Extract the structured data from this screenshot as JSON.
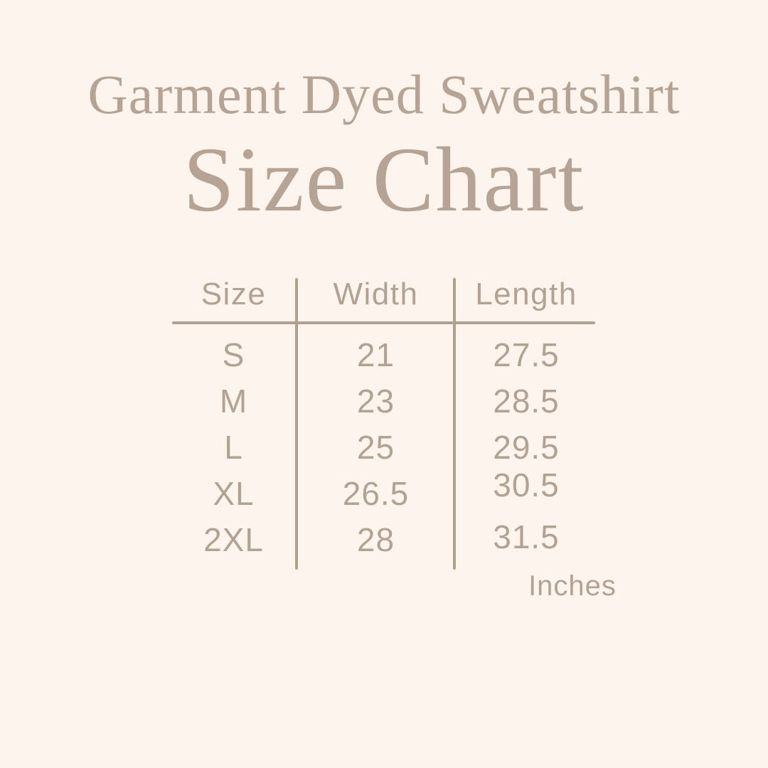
{
  "colors": {
    "background": "#fdf5ed",
    "title_text": "#b5a496",
    "table_text": "#b2a294",
    "rule_lines": "#b0a092"
  },
  "header": {
    "title": "Garment Dyed Sweatshirt",
    "subtitle": "Size Chart"
  },
  "chart_data": {
    "type": "table",
    "title": "Garment Dyed Sweatshirt",
    "subtitle": "Size Chart",
    "columns": [
      "Size",
      "Width",
      "Length"
    ],
    "rows": [
      [
        "S",
        "21",
        "27.5"
      ],
      [
        "M",
        "23",
        "28.5"
      ],
      [
        "L",
        "25",
        "29.5"
      ],
      [
        "XL",
        "26.5",
        "30.5"
      ],
      [
        "2XL",
        "28",
        "31.5"
      ]
    ],
    "unit": "Inches",
    "layout": {
      "grid": "off",
      "column_dividers": 2,
      "header_rule": true
    }
  },
  "footer": {
    "unit_label": "Inches"
  }
}
